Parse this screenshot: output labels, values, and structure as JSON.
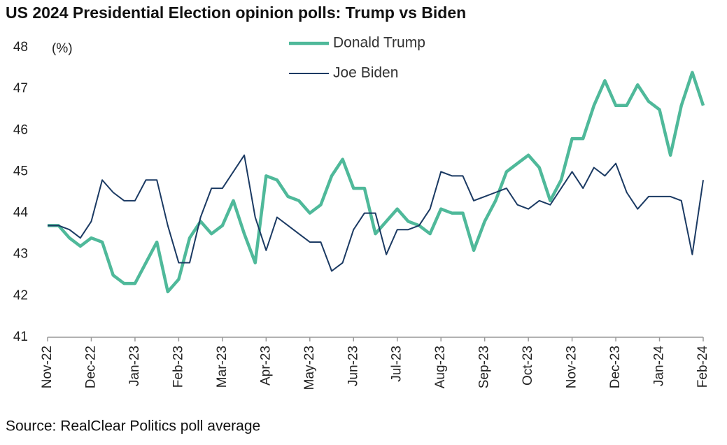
{
  "chart_data": {
    "type": "line",
    "title": "US 2024 Presidential Election opinion polls: Trump vs Biden",
    "ylabel": "(%)",
    "source": "Source: RealClear Politics poll average",
    "x": [
      0,
      0.25,
      0.5,
      0.75,
      1,
      1.25,
      1.5,
      1.75,
      2,
      2.25,
      2.5,
      2.75,
      3,
      3.25,
      3.5,
      3.75,
      4,
      4.25,
      4.5,
      4.75,
      5,
      5.25,
      5.5,
      5.75,
      6,
      6.25,
      6.5,
      6.75,
      7,
      7.25,
      7.5,
      7.75,
      8,
      8.25,
      8.5,
      8.75,
      9,
      9.25,
      9.5,
      9.75,
      10,
      10.25,
      10.5,
      10.75,
      11,
      11.25,
      11.5,
      11.75,
      12,
      12.25,
      12.5,
      12.75,
      13,
      13.25,
      13.5,
      13.75,
      14,
      14.25,
      14.5,
      14.75,
      15
    ],
    "xlim": [
      0,
      15
    ],
    "xticks": [
      {
        "value": 0,
        "label": "Nov-22"
      },
      {
        "value": 1,
        "label": "Dec-22"
      },
      {
        "value": 2,
        "label": "Jan-23"
      },
      {
        "value": 3,
        "label": "Feb-23"
      },
      {
        "value": 4,
        "label": "Mar-23"
      },
      {
        "value": 5,
        "label": "Apr-23"
      },
      {
        "value": 6,
        "label": "May-23"
      },
      {
        "value": 7,
        "label": "Jun-23"
      },
      {
        "value": 8,
        "label": "Jul-23"
      },
      {
        "value": 9,
        "label": "Aug-23"
      },
      {
        "value": 10,
        "label": "Sep-23"
      },
      {
        "value": 11,
        "label": "Oct-23"
      },
      {
        "value": 12,
        "label": "Nov-23"
      },
      {
        "value": 13,
        "label": "Dec-23"
      },
      {
        "value": 14,
        "label": "Jan-24"
      },
      {
        "value": 15,
        "label": "Feb-24"
      }
    ],
    "ylim": [
      41,
      48
    ],
    "yticks": [
      41,
      42,
      43,
      44,
      45,
      46,
      47,
      48
    ],
    "grid": false,
    "series": [
      {
        "name": "Donald Trump",
        "color": "#4fb99a",
        "width": 4.5,
        "values": [
          43.7,
          43.7,
          43.4,
          43.2,
          43.4,
          43.3,
          42.5,
          42.3,
          42.3,
          42.8,
          43.3,
          42.1,
          42.4,
          43.4,
          43.8,
          43.5,
          43.7,
          44.3,
          43.5,
          42.8,
          44.9,
          44.8,
          44.4,
          44.3,
          44.0,
          44.2,
          44.9,
          45.3,
          44.6,
          44.6,
          43.5,
          43.8,
          44.1,
          43.8,
          43.7,
          43.5,
          44.1,
          44.0,
          44.0,
          43.1,
          43.8,
          44.3,
          45.0,
          45.2,
          45.4,
          45.1,
          44.3,
          44.8,
          45.8,
          45.8,
          46.6,
          47.2,
          46.6,
          46.6,
          47.1,
          46.7,
          46.5,
          45.4,
          46.6,
          47.4,
          46.6
        ]
      },
      {
        "name": "Joe Biden",
        "color": "#1b3a63",
        "width": 2,
        "values": [
          43.7,
          43.7,
          43.6,
          43.4,
          43.8,
          44.8,
          44.5,
          44.3,
          44.3,
          44.8,
          44.8,
          43.7,
          42.8,
          42.8,
          43.9,
          44.6,
          44.6,
          45.0,
          45.4,
          43.9,
          43.1,
          43.9,
          43.7,
          43.5,
          43.3,
          43.3,
          42.6,
          42.8,
          43.6,
          44.0,
          44.0,
          43.0,
          43.6,
          43.6,
          43.7,
          44.1,
          45.0,
          44.9,
          44.9,
          44.3,
          44.4,
          44.5,
          44.6,
          44.2,
          44.1,
          44.3,
          44.2,
          44.6,
          45.0,
          44.6,
          45.1,
          44.9,
          45.2,
          44.5,
          44.1,
          44.4,
          44.4,
          44.4,
          44.3,
          43.0,
          44.8
        ]
      }
    ]
  }
}
